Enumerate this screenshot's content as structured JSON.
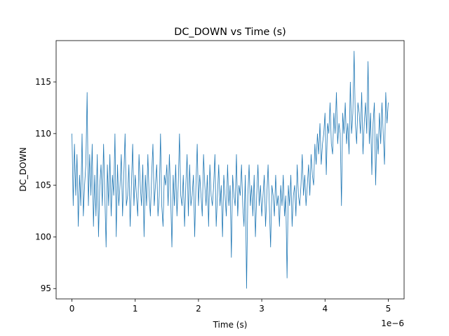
{
  "chart_data": {
    "type": "line",
    "title": "DC_DOWN vs Time (s)",
    "xlabel": "Time (s)",
    "ylabel": "DC_DOWN",
    "x_offset_label": "1e−6",
    "xlim": [
      -0.25,
      5.25
    ],
    "ylim": [
      94,
      119
    ],
    "x_ticks": [
      0,
      1,
      2,
      3,
      4,
      5
    ],
    "x_tick_labels": [
      "0",
      "1",
      "2",
      "3",
      "4",
      "5"
    ],
    "y_ticks": [
      95,
      100,
      105,
      110,
      115
    ],
    "y_tick_labels": [
      "95",
      "100",
      "105",
      "110",
      "115"
    ],
    "grid": false,
    "legend": "none",
    "series_color": "#1f77b4",
    "series": [
      {
        "x": [
          0.0,
          0.02,
          0.04,
          0.06,
          0.08,
          0.1,
          0.12,
          0.14,
          0.16,
          0.18,
          0.2,
          0.22,
          0.24,
          0.26,
          0.28,
          0.3,
          0.32,
          0.34,
          0.36,
          0.38,
          0.4,
          0.42,
          0.44,
          0.46,
          0.48,
          0.5,
          0.52,
          0.54,
          0.56,
          0.58,
          0.6,
          0.62,
          0.64,
          0.66,
          0.68,
          0.7,
          0.72,
          0.74,
          0.76,
          0.78,
          0.8,
          0.82,
          0.84,
          0.86,
          0.88,
          0.9,
          0.92,
          0.94,
          0.96,
          0.98,
          1.0,
          1.02,
          1.04,
          1.06,
          1.08,
          1.1,
          1.12,
          1.14,
          1.16,
          1.18,
          1.2,
          1.22,
          1.24,
          1.26,
          1.28,
          1.3,
          1.32,
          1.34,
          1.36,
          1.38,
          1.4,
          1.42,
          1.44,
          1.46,
          1.48,
          1.5,
          1.52,
          1.54,
          1.56,
          1.58,
          1.6,
          1.62,
          1.64,
          1.66,
          1.68,
          1.7,
          1.72,
          1.74,
          1.76,
          1.78,
          1.8,
          1.82,
          1.84,
          1.86,
          1.88,
          1.9,
          1.92,
          1.94,
          1.96,
          1.98,
          2.0,
          2.02,
          2.04,
          2.06,
          2.08,
          2.1,
          2.12,
          2.14,
          2.16,
          2.18,
          2.2,
          2.22,
          2.24,
          2.26,
          2.28,
          2.3,
          2.32,
          2.34,
          2.36,
          2.38,
          2.4,
          2.42,
          2.44,
          2.46,
          2.48,
          2.5,
          2.52,
          2.54,
          2.56,
          2.58,
          2.6,
          2.62,
          2.64,
          2.66,
          2.68,
          2.7,
          2.72,
          2.74,
          2.76,
          2.78,
          2.8,
          2.82,
          2.84,
          2.86,
          2.88,
          2.9,
          2.92,
          2.94,
          2.96,
          2.98,
          3.0,
          3.02,
          3.04,
          3.06,
          3.08,
          3.1,
          3.12,
          3.14,
          3.16,
          3.18,
          3.2,
          3.22,
          3.24,
          3.26,
          3.28,
          3.3,
          3.32,
          3.34,
          3.36,
          3.38,
          3.4,
          3.42,
          3.44,
          3.46,
          3.48,
          3.5,
          3.52,
          3.54,
          3.56,
          3.58,
          3.6,
          3.62,
          3.64,
          3.66,
          3.68,
          3.7,
          3.72,
          3.74,
          3.76,
          3.78,
          3.8,
          3.82,
          3.84,
          3.86,
          3.88,
          3.9,
          3.92,
          3.94,
          3.96,
          3.98,
          4.0,
          4.02,
          4.04,
          4.06,
          4.08,
          4.1,
          4.12,
          4.14,
          4.16,
          4.18,
          4.2,
          4.22,
          4.24,
          4.26,
          4.28,
          4.3,
          4.32,
          4.34,
          4.36,
          4.38,
          4.4,
          4.42,
          4.44,
          4.46,
          4.48,
          4.5,
          4.52,
          4.54,
          4.56,
          4.58,
          4.6,
          4.62,
          4.64,
          4.66,
          4.68,
          4.7,
          4.72,
          4.74,
          4.76,
          4.78,
          4.8,
          4.82,
          4.84,
          4.86,
          4.88,
          4.9,
          4.92,
          4.94,
          4.96,
          4.98,
          5.0
        ],
        "y": [
          110,
          103,
          109,
          104,
          108,
          101,
          106,
          103,
          110,
          102,
          105,
          107,
          114,
          103,
          108,
          104,
          109,
          101,
          106,
          102,
          108,
          100,
          105,
          107,
          103,
          109,
          104,
          99,
          107,
          103,
          108,
          102,
          106,
          104,
          110,
          100,
          107,
          103,
          105,
          108,
          102,
          106,
          110,
          103,
          104,
          107,
          101,
          105,
          109,
          103,
          106,
          104,
          102,
          108,
          105,
          103,
          107,
          100,
          106,
          103,
          108,
          104,
          102,
          106,
          109,
          103,
          105,
          107,
          102,
          104,
          110,
          103,
          101,
          106,
          105,
          107,
          103,
          108,
          104,
          99,
          106,
          103,
          107,
          102,
          105,
          110,
          104,
          103,
          106,
          101,
          105,
          108,
          102,
          107,
          103,
          104,
          106,
          100,
          105,
          109,
          103,
          106,
          104,
          102,
          108,
          105,
          103,
          106,
          101,
          107,
          104,
          103,
          105,
          108,
          101,
          104,
          107,
          103,
          105,
          100,
          106,
          104,
          102,
          107,
          103,
          105,
          98,
          106,
          104,
          103,
          108,
          102,
          105,
          104,
          107,
          103,
          101,
          106,
          95,
          104,
          107,
          103,
          105,
          102,
          106,
          100,
          104,
          107,
          103,
          105,
          102,
          104,
          106,
          101,
          104,
          107,
          103,
          99,
          105,
          104,
          102,
          106,
          103,
          104,
          101,
          105,
          103,
          106,
          102,
          104,
          96,
          105,
          103,
          106,
          101,
          104,
          105,
          102,
          107,
          104,
          103,
          105,
          108,
          104,
          106,
          103,
          105,
          107,
          104,
          108,
          106,
          105,
          109,
          107,
          110,
          108,
          111,
          107,
          109,
          110,
          112,
          106,
          111,
          110,
          113,
          109,
          108,
          112,
          110,
          114,
          109,
          111,
          110,
          103,
          112,
          110,
          113,
          109,
          111,
          108,
          115,
          110,
          112,
          118,
          111,
          109,
          113,
          112,
          110,
          114,
          108,
          111,
          113,
          110,
          117,
          109,
          112,
          106,
          111,
          113,
          105,
          110,
          108,
          112,
          109,
          113,
          110,
          107,
          114,
          111,
          113
        ]
      }
    ]
  }
}
